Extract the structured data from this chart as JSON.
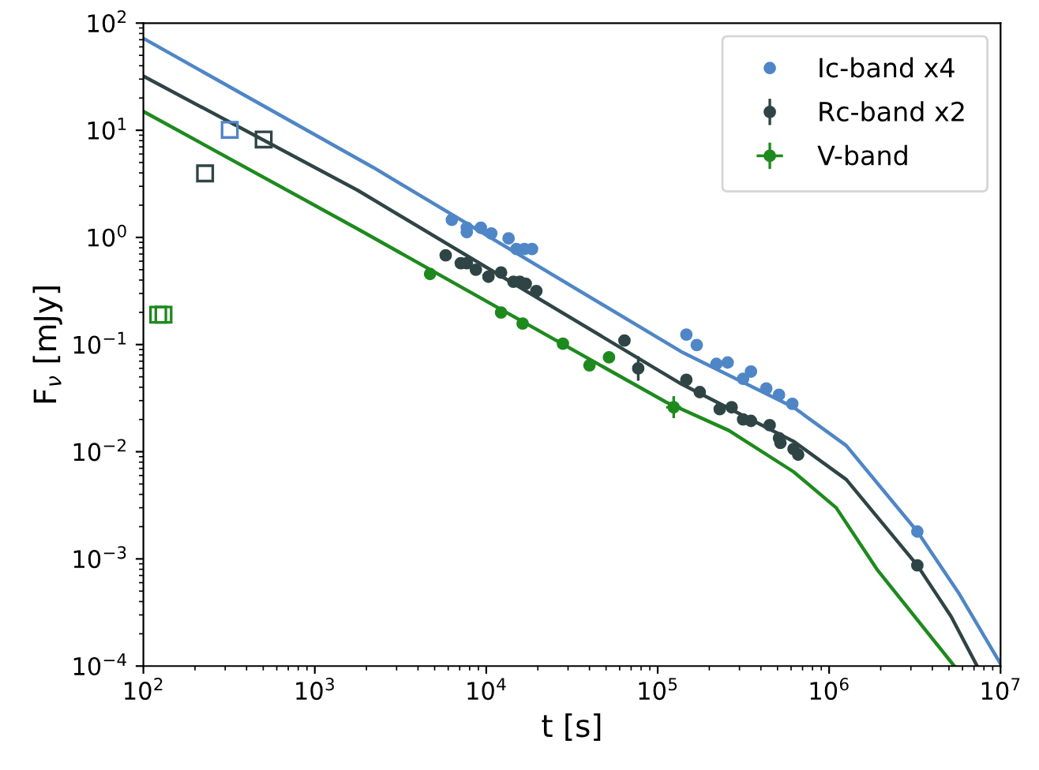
{
  "chart_data": {
    "type": "scatter",
    "xlabel": "t [s]",
    "ylabel": "F$_{ν}$ [mJy]",
    "log": "xy",
    "grid": false,
    "legend": "top right",
    "xlim": [
      100,
      10000000
    ],
    "ylim": [
      0.0001,
      100
    ],
    "xticks": [
      {
        "value": 100,
        "label": "10$^{2}$"
      },
      {
        "value": 1000,
        "label": "10$^{3}$"
      },
      {
        "value": 10000,
        "label": "10$^{4}$"
      },
      {
        "value": 100000,
        "label": "10$^{5}$"
      },
      {
        "value": 1000000,
        "label": "10$^{6}$"
      },
      {
        "value": 10000000,
        "label": "10$^{7}$"
      }
    ],
    "yticks": [
      {
        "value": 0.0001,
        "label": "10$^{−4}$"
      },
      {
        "value": 0.001,
        "label": "10$^{−3}$"
      },
      {
        "value": 0.01,
        "label": "10$^{−2}$"
      },
      {
        "value": 0.1,
        "label": "10$^{−1}$"
      },
      {
        "value": 1,
        "label": "10$^{0}$"
      },
      {
        "value": 10,
        "label": "10$^{1}$"
      },
      {
        "value": 100,
        "label": "10$^{2}$"
      }
    ],
    "series": [
      {
        "type": "line",
        "color": "#4f86c6",
        "x": [
          100,
          2190,
          137000,
          620000,
          1260000,
          3270000,
          5700000,
          10000000
        ],
        "values": [
          72,
          4.5,
          0.086,
          0.026,
          0.0114,
          0.0018,
          0.00048,
          0.000105
        ]
      },
      {
        "type": "line",
        "color": "#2f4545",
        "x": [
          100,
          1780,
          137000,
          620000,
          1260000,
          3270000,
          5150000,
          7300000
        ],
        "values": [
          32,
          2.75,
          0.043,
          0.0125,
          0.0055,
          0.00087,
          0.00029,
          0.0001
        ]
      },
      {
        "type": "line",
        "color": "#1e8a1e",
        "x": [
          100,
          1780,
          112000,
          260000,
          620000,
          1100000,
          1900000,
          5370000
        ],
        "values": [
          15,
          1.2,
          0.029,
          0.0158,
          0.0065,
          0.003,
          0.0008,
          0.0001
        ]
      },
      {
        "marker": "circle",
        "name": "Ic-band x4",
        "color": "#4f86c6",
        "x": [
          6300,
          7700,
          7700,
          9300,
          10700,
          13500,
          15000,
          16700,
          18500,
          147000,
          169000,
          220000,
          256000,
          315000,
          350000,
          430000,
          510000,
          610000,
          3270000
        ],
        "values": [
          1.46,
          1.12,
          1.23,
          1.23,
          1.09,
          0.98,
          0.78,
          0.78,
          0.78,
          0.124,
          0.099,
          0.066,
          0.068,
          0.048,
          0.056,
          0.039,
          0.034,
          0.028,
          0.0018
        ]
      },
      {
        "marker": "circle",
        "name": "Rc-band x2",
        "color": "#2f4545",
        "x": [
          5800,
          7100,
          7700,
          8700,
          10300,
          12200,
          14400,
          15700,
          17000,
          19600,
          64000,
          77000,
          147000,
          176000,
          230000,
          270000,
          315000,
          350000,
          450000,
          510000,
          520000,
          620000,
          660000,
          3270000
        ],
        "values": [
          0.68,
          0.575,
          0.575,
          0.5,
          0.43,
          0.47,
          0.386,
          0.386,
          0.37,
          0.316,
          0.109,
          0.06,
          0.047,
          0.036,
          0.025,
          0.026,
          0.02,
          0.0194,
          0.0177,
          0.0134,
          0.0121,
          0.0106,
          0.0094,
          0.00087
        ],
        "errors": [
          null,
          null,
          null,
          null,
          null,
          null,
          null,
          null,
          null,
          null,
          null,
          [
            0.046,
            0.078
          ],
          null,
          null,
          null,
          null,
          null,
          null,
          null,
          null,
          null,
          null,
          null,
          null
        ]
      },
      {
        "marker": "circle",
        "name": "V-band",
        "color": "#1e8a1e",
        "x": [
          4700,
          12200,
          16300,
          28000,
          40000,
          52000,
          124000
        ],
        "values": [
          0.456,
          0.199,
          0.157,
          0.102,
          0.064,
          0.076,
          0.026
        ],
        "errors": [
          null,
          null,
          null,
          null,
          null,
          null,
          [
            0.0206,
            0.033
          ]
        ],
        "xerrors": [
          null,
          null,
          null,
          null,
          null,
          null,
          [
            112000,
            137000
          ]
        ]
      },
      {
        "marker": "square",
        "color": "#4f86c6",
        "x": [
          319
        ],
        "values": [
          10.1
        ]
      },
      {
        "marker": "square",
        "color": "#2f4545",
        "x": [
          229,
          503
        ],
        "values": [
          3.96,
          8.2
        ]
      },
      {
        "marker": "square",
        "color": "#1e8a1e",
        "x": [
          122,
          131
        ],
        "values": [
          0.19,
          0.19
        ]
      }
    ]
  }
}
